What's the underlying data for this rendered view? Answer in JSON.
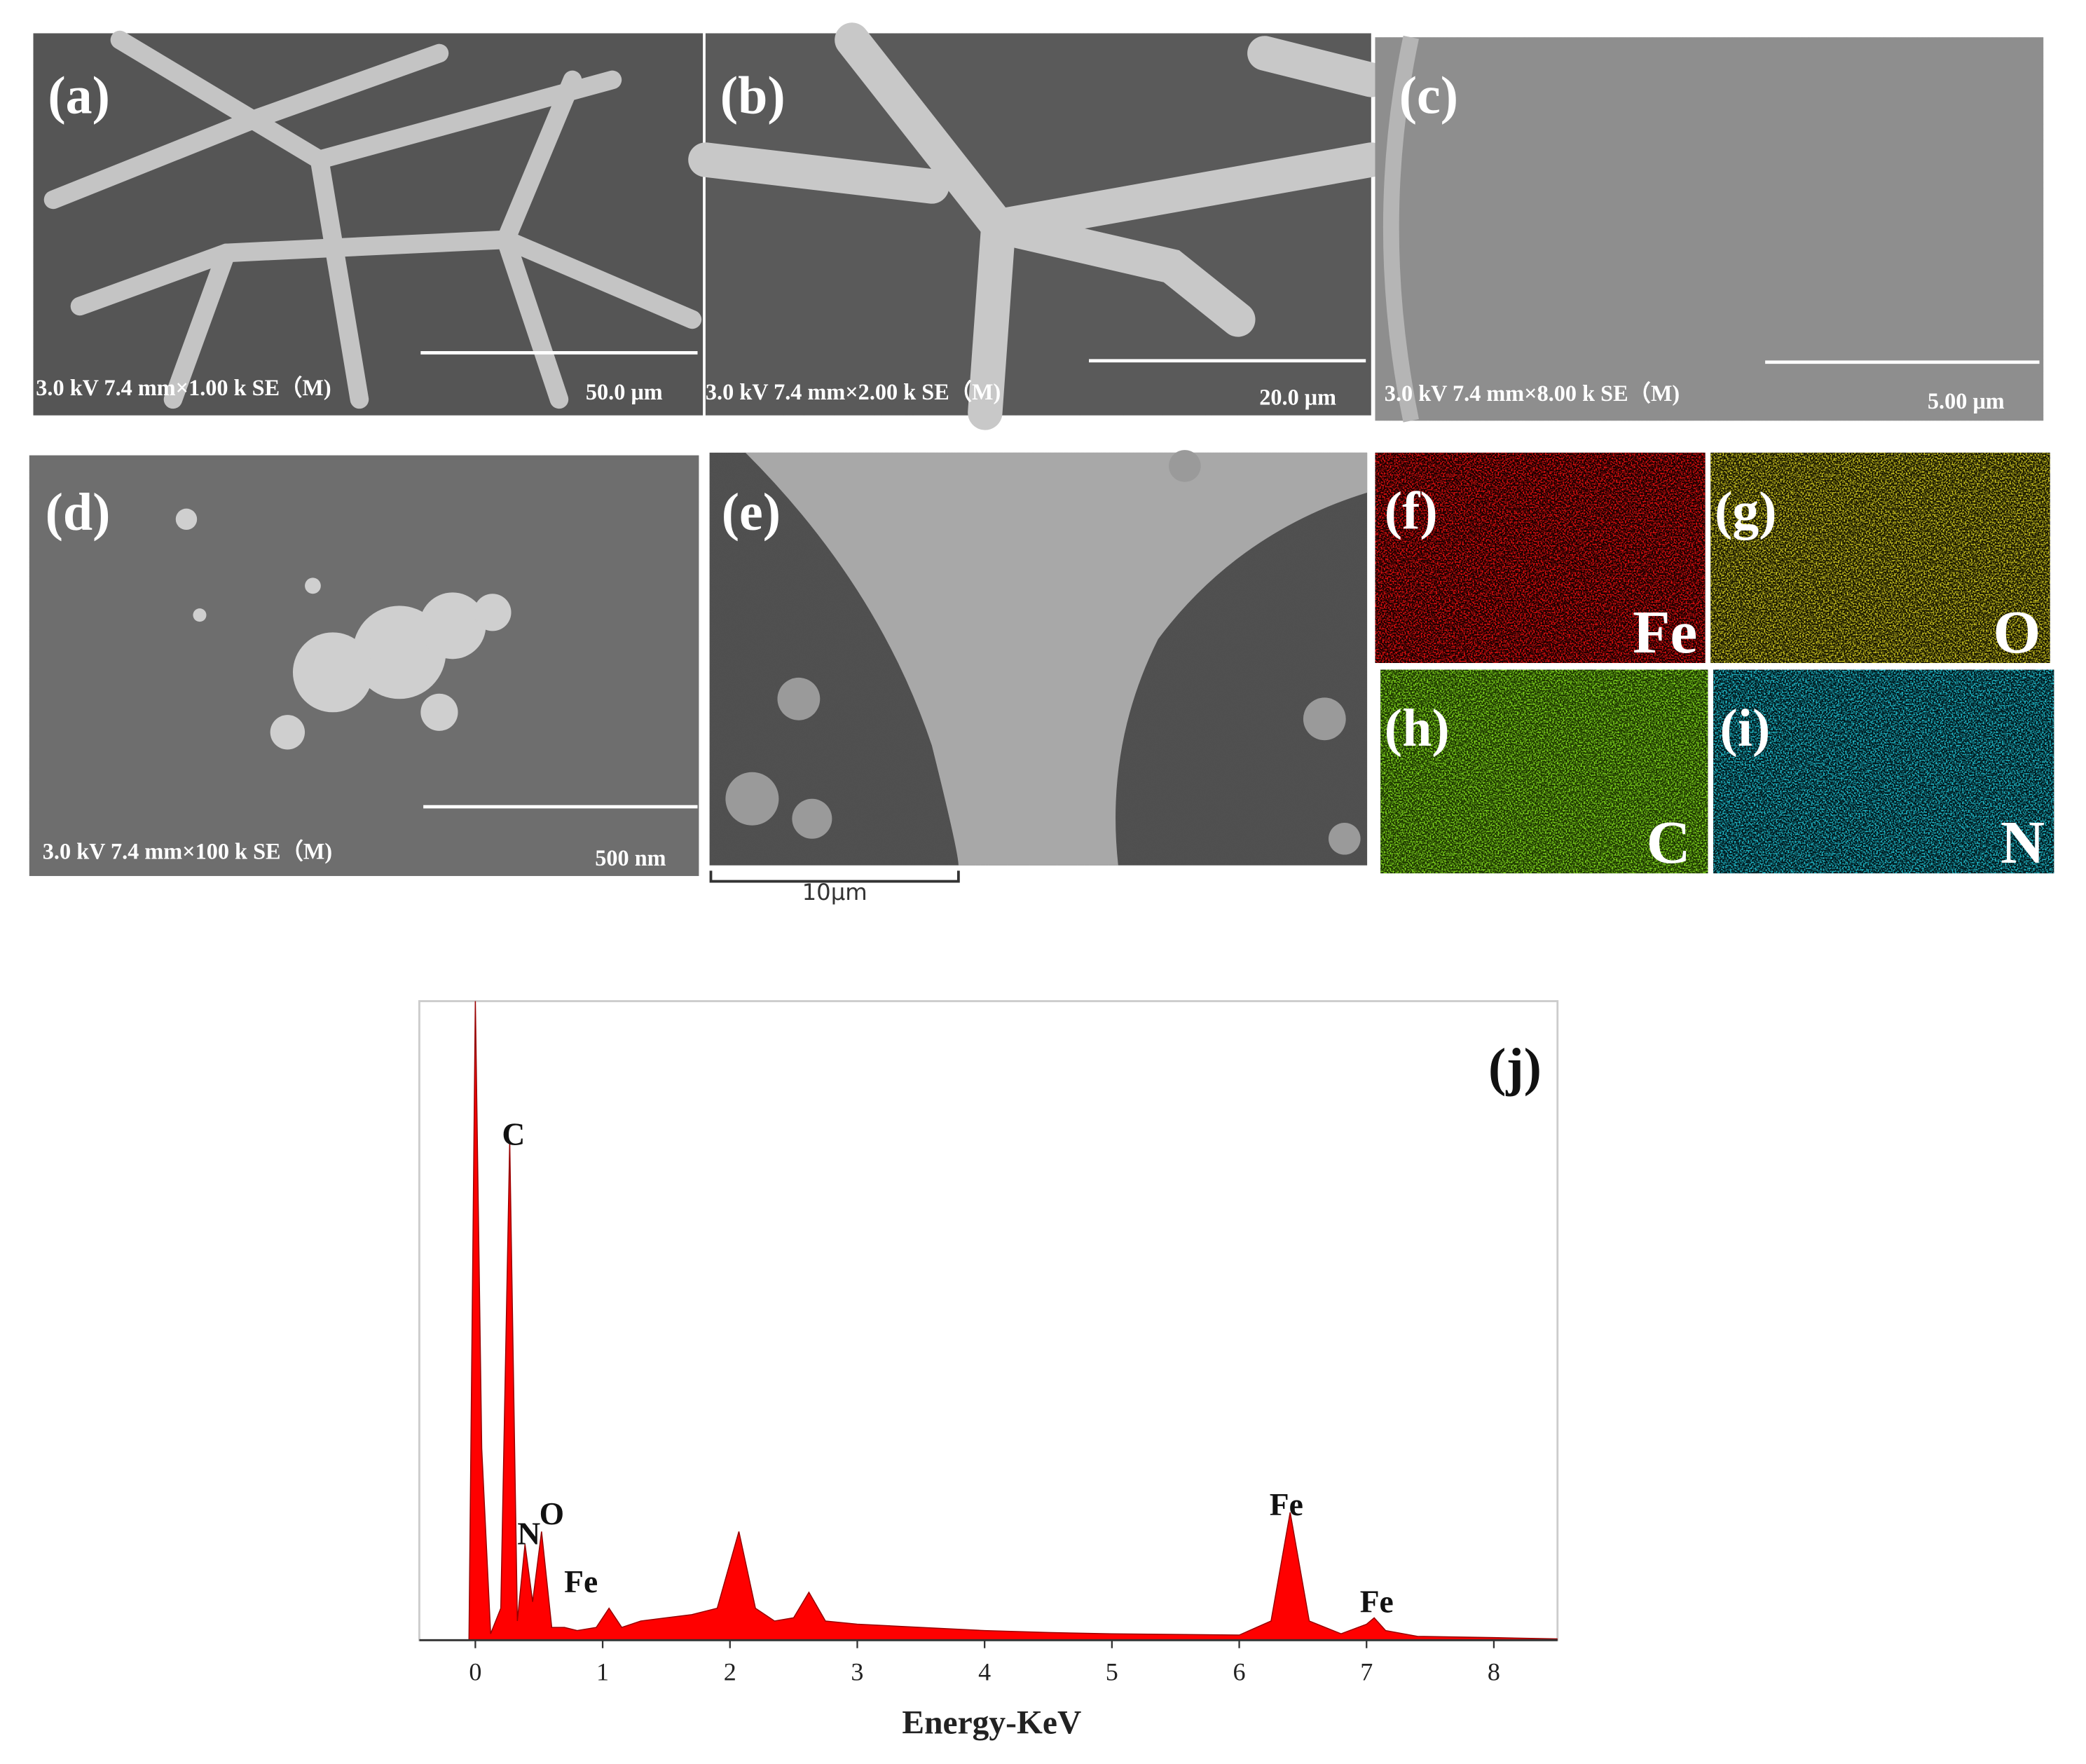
{
  "panels": [
    {
      "label": "(a)",
      "info": "3.0 kV 7.4 mm×1.00 k SE（M)",
      "scale": "50.0 μm"
    },
    {
      "label": "(b)",
      "info": "3.0 kV 7.4 mm×2.00 k SE（M)",
      "scale": "20.0 μm"
    },
    {
      "label": "(c)",
      "info": "3.0 kV 7.4 mm×8.00 k SE（M)",
      "scale": "5.00 μm"
    },
    {
      "label": "(d)",
      "info": "3.0 kV 7.4 mm×100 k SE（M)",
      "scale": "500 nm"
    },
    {
      "label": "(e)",
      "scale": "10μm"
    }
  ],
  "maps": [
    {
      "label": "(f)",
      "element": "Fe"
    },
    {
      "label": "(g)",
      "element": "O"
    },
    {
      "label": "(h)",
      "element": "C"
    },
    {
      "label": "(i)",
      "element": "N"
    }
  ],
  "chart_data": {
    "type": "area",
    "title": "(j)",
    "x_label": "Energy-KeV",
    "color": "#ff0000",
    "x": [
      -0.05,
      0,
      0.05,
      0.12,
      0.2,
      0.27,
      0.33,
      0.39,
      0.45,
      0.52,
      0.6,
      0.7,
      0.8,
      0.95,
      1.05,
      1.15,
      1.3,
      1.5,
      1.7,
      1.9,
      2.07,
      2.2,
      2.35,
      2.5,
      2.62,
      2.75,
      3,
      3.5,
      4,
      4.5,
      5,
      5.5,
      6,
      6.25,
      6.4,
      6.55,
      6.8,
      7,
      7.06,
      7.15,
      7.4,
      8,
      8.5
    ],
    "values": [
      0,
      100,
      30,
      1,
      5,
      78,
      3,
      15,
      6,
      17,
      2,
      2,
      1.5,
      2,
      5,
      2,
      3,
      3.5,
      4,
      5,
      17,
      5,
      3,
      3.5,
      7.5,
      3,
      2.5,
      2,
      1.5,
      1.2,
      1,
      0.9,
      0.8,
      3,
      20,
      3,
      1,
      2.5,
      3.5,
      1.5,
      0.6,
      0.4,
      0.2
    ],
    "xlim": [
      -0.44,
      8.5
    ],
    "ylim": [
      0,
      100
    ],
    "xticks": [
      0,
      1,
      2,
      3,
      4,
      5,
      6,
      7,
      8
    ],
    "annotations": [
      "C",
      "N",
      "O",
      "Fe",
      "Fe",
      "Fe"
    ]
  }
}
